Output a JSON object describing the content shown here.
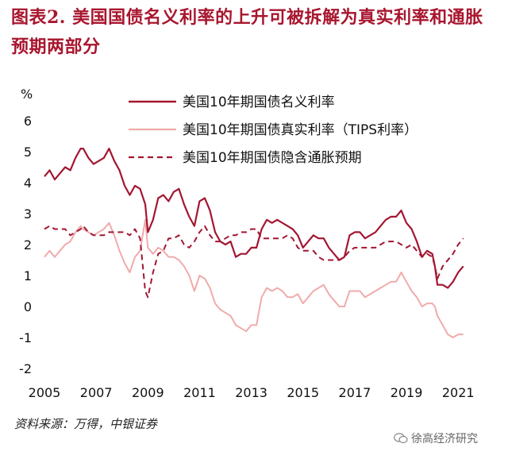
{
  "title": "图表2.  美国国债名义利率的上升可被拆解为真实利率和通胀预期两部分",
  "source": "资料来源：万得，中银证券",
  "watermark": "徐高经济研究",
  "colors": {
    "title": "#A8162E",
    "nominal": "#A31631",
    "real": "#F0ABAB",
    "infl": "#A31631"
  },
  "chart_data": {
    "type": "line",
    "ylabel": "%",
    "ylim": [
      -2,
      6
    ],
    "yticks": [
      "-2",
      "-1",
      "0",
      "1",
      "2",
      "3",
      "4",
      "5",
      "6"
    ],
    "xlim": [
      2005,
      2021.7
    ],
    "xticks": [
      "2005",
      "2007",
      "2009",
      "2011",
      "2013",
      "2015",
      "2017",
      "2019",
      "2021"
    ],
    "legend_position": "top-right",
    "series": [
      {
        "name": "美国10年期国债名义利率",
        "style": "solid",
        "x": [
          2005.0,
          2005.2,
          2005.4,
          2005.6,
          2005.8,
          2006.0,
          2006.2,
          2006.4,
          2006.5,
          2006.7,
          2006.9,
          2007.1,
          2007.3,
          2007.5,
          2007.7,
          2007.9,
          2008.1,
          2008.3,
          2008.5,
          2008.7,
          2008.9,
          2009.0,
          2009.2,
          2009.4,
          2009.6,
          2009.8,
          2010.0,
          2010.2,
          2010.4,
          2010.6,
          2010.8,
          2011.0,
          2011.2,
          2011.4,
          2011.6,
          2011.8,
          2012.0,
          2012.2,
          2012.4,
          2012.6,
          2012.8,
          2013.0,
          2013.2,
          2013.4,
          2013.6,
          2013.8,
          2014.0,
          2014.2,
          2014.4,
          2014.6,
          2014.8,
          2015.0,
          2015.2,
          2015.4,
          2015.6,
          2015.8,
          2016.0,
          2016.2,
          2016.4,
          2016.6,
          2016.8,
          2017.0,
          2017.2,
          2017.4,
          2017.6,
          2017.8,
          2018.0,
          2018.2,
          2018.4,
          2018.6,
          2018.8,
          2019.0,
          2019.2,
          2019.4,
          2019.6,
          2019.8,
          2020.0,
          2020.1,
          2020.2,
          2020.4,
          2020.6,
          2020.8,
          2021.0,
          2021.2
        ],
        "values": [
          4.2,
          4.4,
          4.1,
          4.3,
          4.5,
          4.4,
          4.8,
          5.1,
          5.1,
          4.8,
          4.6,
          4.7,
          4.8,
          5.1,
          4.7,
          4.4,
          3.9,
          3.6,
          3.9,
          3.8,
          3.3,
          2.4,
          2.8,
          3.5,
          3.6,
          3.4,
          3.7,
          3.8,
          3.3,
          2.9,
          2.6,
          3.4,
          3.5,
          3.1,
          2.4,
          2.1,
          2.0,
          2.1,
          1.6,
          1.7,
          1.7,
          1.9,
          1.9,
          2.5,
          2.8,
          2.7,
          2.8,
          2.7,
          2.6,
          2.5,
          2.3,
          1.9,
          2.1,
          2.3,
          2.2,
          2.2,
          1.9,
          1.7,
          1.5,
          1.6,
          2.3,
          2.4,
          2.4,
          2.2,
          2.3,
          2.4,
          2.6,
          2.8,
          2.9,
          2.9,
          3.1,
          2.7,
          2.5,
          2.1,
          1.6,
          1.8,
          1.7,
          1.3,
          0.7,
          0.7,
          0.6,
          0.8,
          1.1,
          1.3
        ]
      },
      {
        "name": "美国10年期国债真实利率（TIPS利率）",
        "style": "solid",
        "x": [
          2005.0,
          2005.2,
          2005.4,
          2005.6,
          2005.8,
          2006.0,
          2006.2,
          2006.4,
          2006.5,
          2006.7,
          2006.9,
          2007.1,
          2007.3,
          2007.5,
          2007.7,
          2007.9,
          2008.1,
          2008.3,
          2008.5,
          2008.7,
          2008.9,
          2009.0,
          2009.2,
          2009.4,
          2009.6,
          2009.8,
          2010.0,
          2010.2,
          2010.4,
          2010.6,
          2010.8,
          2011.0,
          2011.2,
          2011.4,
          2011.6,
          2011.8,
          2012.0,
          2012.2,
          2012.4,
          2012.6,
          2012.8,
          2013.0,
          2013.2,
          2013.4,
          2013.6,
          2013.8,
          2014.0,
          2014.2,
          2014.4,
          2014.6,
          2014.8,
          2015.0,
          2015.2,
          2015.4,
          2015.6,
          2015.8,
          2016.0,
          2016.2,
          2016.4,
          2016.6,
          2016.8,
          2017.0,
          2017.2,
          2017.4,
          2017.6,
          2017.8,
          2018.0,
          2018.2,
          2018.4,
          2018.6,
          2018.8,
          2019.0,
          2019.2,
          2019.4,
          2019.6,
          2019.8,
          2020.0,
          2020.1,
          2020.2,
          2020.4,
          2020.6,
          2020.8,
          2021.0,
          2021.2
        ],
        "values": [
          1.6,
          1.8,
          1.6,
          1.8,
          2.0,
          2.1,
          2.4,
          2.6,
          2.5,
          2.4,
          2.3,
          2.4,
          2.5,
          2.7,
          2.3,
          1.8,
          1.4,
          1.1,
          1.6,
          1.8,
          2.8,
          1.9,
          1.7,
          1.9,
          1.8,
          1.6,
          1.6,
          1.5,
          1.3,
          1.0,
          0.5,
          1.0,
          0.9,
          0.6,
          0.1,
          -0.1,
          -0.2,
          -0.3,
          -0.6,
          -0.7,
          -0.8,
          -0.6,
          -0.6,
          0.3,
          0.6,
          0.5,
          0.6,
          0.5,
          0.3,
          0.3,
          0.4,
          0.1,
          0.3,
          0.5,
          0.6,
          0.7,
          0.4,
          0.2,
          0.0,
          0.0,
          0.5,
          0.5,
          0.5,
          0.3,
          0.4,
          0.5,
          0.6,
          0.7,
          0.8,
          0.8,
          1.1,
          0.8,
          0.5,
          0.3,
          0.0,
          0.1,
          0.1,
          0.0,
          -0.3,
          -0.6,
          -0.9,
          -1.0,
          -0.9,
          -0.9
        ]
      },
      {
        "name": "美国10年期国债隐含通胀预期",
        "style": "dashed",
        "x": [
          2005.0,
          2005.2,
          2005.4,
          2005.6,
          2005.8,
          2006.0,
          2006.2,
          2006.4,
          2006.5,
          2006.7,
          2006.9,
          2007.1,
          2007.3,
          2007.5,
          2007.7,
          2007.9,
          2008.1,
          2008.3,
          2008.5,
          2008.7,
          2008.9,
          2009.0,
          2009.2,
          2009.4,
          2009.6,
          2009.8,
          2010.0,
          2010.2,
          2010.4,
          2010.6,
          2010.8,
          2011.0,
          2011.2,
          2011.4,
          2011.6,
          2011.8,
          2012.0,
          2012.2,
          2012.4,
          2012.6,
          2012.8,
          2013.0,
          2013.2,
          2013.4,
          2013.6,
          2013.8,
          2014.0,
          2014.2,
          2014.4,
          2014.6,
          2014.8,
          2015.0,
          2015.2,
          2015.4,
          2015.6,
          2015.8,
          2016.0,
          2016.2,
          2016.4,
          2016.6,
          2016.8,
          2017.0,
          2017.2,
          2017.4,
          2017.6,
          2017.8,
          2018.0,
          2018.2,
          2018.4,
          2018.6,
          2018.8,
          2019.0,
          2019.2,
          2019.4,
          2019.6,
          2019.8,
          2020.0,
          2020.1,
          2020.2,
          2020.4,
          2020.6,
          2020.8,
          2021.0,
          2021.2
        ],
        "values": [
          2.5,
          2.6,
          2.5,
          2.5,
          2.5,
          2.3,
          2.4,
          2.5,
          2.6,
          2.4,
          2.3,
          2.3,
          2.3,
          2.4,
          2.4,
          2.4,
          2.4,
          2.3,
          2.5,
          2.2,
          0.5,
          0.3,
          1.1,
          1.7,
          1.8,
          2.2,
          2.2,
          2.3,
          2.0,
          1.9,
          2.1,
          2.4,
          2.6,
          2.3,
          2.1,
          2.1,
          2.2,
          2.3,
          2.3,
          2.4,
          2.4,
          2.5,
          2.5,
          2.2,
          2.2,
          2.2,
          2.2,
          2.2,
          2.3,
          2.2,
          1.9,
          1.8,
          1.8,
          1.8,
          1.6,
          1.5,
          1.5,
          1.5,
          1.5,
          1.6,
          1.8,
          1.9,
          1.9,
          1.9,
          1.9,
          1.9,
          2.0,
          2.1,
          2.1,
          2.1,
          2.0,
          1.9,
          2.0,
          1.8,
          1.6,
          1.7,
          1.6,
          1.3,
          0.9,
          1.3,
          1.5,
          1.7,
          2.0,
          2.2
        ]
      }
    ]
  }
}
